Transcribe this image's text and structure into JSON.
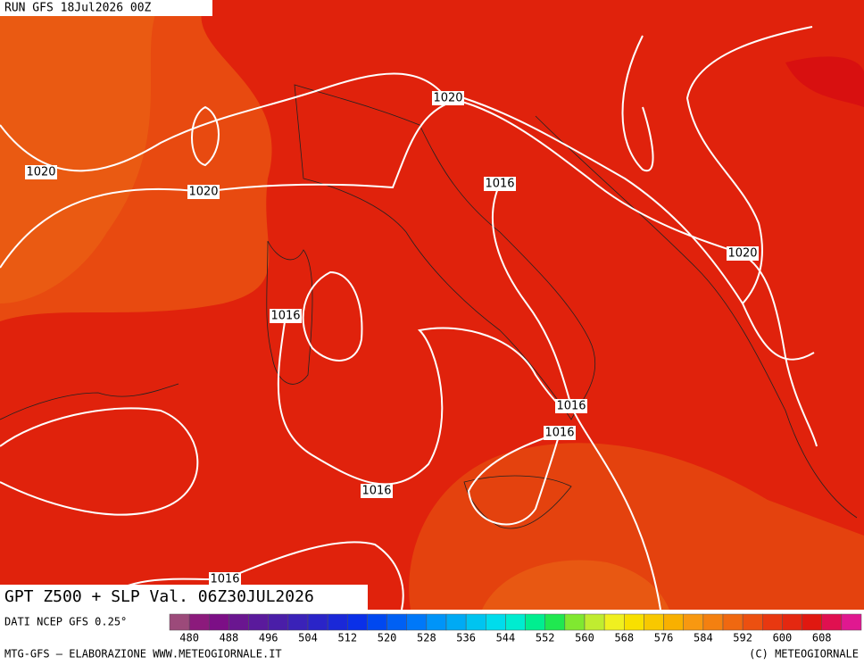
{
  "header": {
    "run": "RUN GFS 18Jul2026 00Z"
  },
  "map": {
    "title": "GPT Z500 + SLP Val. 06Z30JUL2026",
    "isobars": {
      "labels": [
        "1020",
        "1020",
        "1020",
        "1016",
        "1020",
        "1016",
        "1016",
        "1016",
        "1016",
        "1016"
      ]
    }
  },
  "legend": {
    "source": "DATI NCEP GFS 0.25°",
    "labels": [
      480,
      488,
      496,
      504,
      512,
      520,
      528,
      536,
      544,
      552,
      560,
      568,
      576,
      584,
      592,
      600,
      608
    ],
    "colors": [
      "#9c4a7a",
      "#8c1a7c",
      "#7c0f86",
      "#6a1690",
      "#5a1a9c",
      "#4a1ea8",
      "#3a22b8",
      "#2a24c8",
      "#1a28d8",
      "#0a30e8",
      "#0048f0",
      "#0060f4",
      "#0078f8",
      "#0094f8",
      "#00aaf4",
      "#00c4f0",
      "#00dcec",
      "#00ecd0",
      "#00ee90",
      "#20e850",
      "#80e830",
      "#c0ec30",
      "#f0f020",
      "#f8e000",
      "#f8c800",
      "#f8b000",
      "#f89810",
      "#f48010",
      "#f06810",
      "#ec5010",
      "#e83810",
      "#e42810",
      "#e01810",
      "#e01050",
      "#e01890"
    ]
  },
  "footer": {
    "left": "MTG-GFS — ELABORAZIONE WWW.METEOGIORNALE.IT",
    "right": "(C) METEOGIORNALE"
  }
}
